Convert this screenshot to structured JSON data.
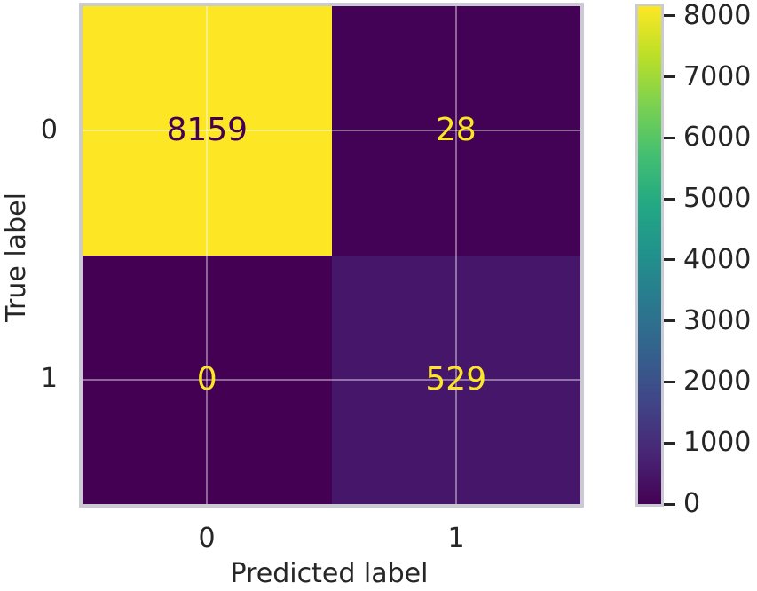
{
  "chart_data": {
    "type": "heatmap",
    "title": "",
    "xlabel": "Predicted label",
    "ylabel": "True label",
    "x_tick_labels": [
      "0",
      "1"
    ],
    "y_tick_labels": [
      "0",
      "1"
    ],
    "matrix": [
      [
        8159,
        28
      ],
      [
        0,
        529
      ]
    ],
    "cell_labels": [
      [
        "8159",
        "28"
      ],
      [
        "0",
        "529"
      ]
    ],
    "vmin": 0,
    "vmax": 8159,
    "colormap": "viridis",
    "grid": true,
    "legend_position": "right-colorbar",
    "cell_colors": [
      [
        "#fde725",
        "#440256"
      ],
      [
        "#440154",
        "#46166a"
      ]
    ],
    "annotation_colors": [
      [
        "#440154",
        "#fde725"
      ],
      [
        "#fde725",
        "#fde725"
      ]
    ],
    "colorbar": {
      "ticks": [
        0,
        1000,
        2000,
        3000,
        4000,
        5000,
        6000,
        7000,
        8000
      ],
      "gradient_bottom_to_top": [
        "#440154",
        "#482576",
        "#414487",
        "#35608d",
        "#2a788e",
        "#21918c",
        "#22a884",
        "#43bf71",
        "#7ad151",
        "#bbdf27",
        "#fde725"
      ]
    }
  },
  "colors": {
    "text": "#262626",
    "axes_border": "#cacad2",
    "gridline": "rgba(255,255,255,0.40)",
    "background": "#ffffff"
  }
}
